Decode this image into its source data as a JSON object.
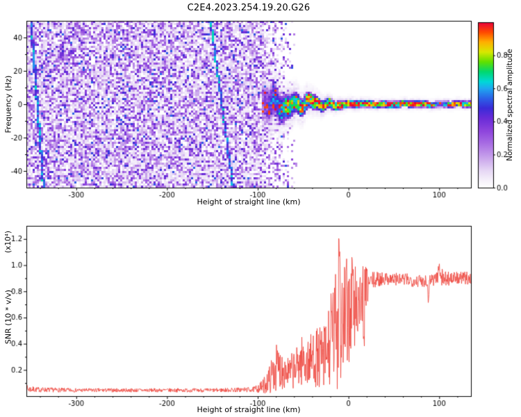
{
  "title": "C2E4.2023.254.19.20.G26",
  "chart_data": [
    {
      "type": "heatmap",
      "xlabel": "Height of straight line (km)",
      "ylabel": "Frequency (Hz)",
      "xlim": [
        -355,
        135
      ],
      "ylim": [
        -50,
        50
      ],
      "xticks": [
        -300,
        -200,
        -100,
        0,
        100
      ],
      "xtick_labels": [
        "-300",
        "-200",
        "-100",
        "0",
        "100"
      ],
      "yticks": [
        -40,
        -20,
        0,
        20,
        40
      ],
      "ytick_labels": [
        "-40",
        "-20",
        "0",
        "20",
        "40"
      ],
      "colorbar": {
        "label": "Normalized spectral amplitude",
        "lim": [
          0,
          1
        ],
        "ticks": [
          0,
          0.2,
          0.4,
          0.6,
          0.8
        ],
        "tick_labels": [
          "0.0",
          "0.2",
          "0.4",
          "0.6",
          "0.8"
        ]
      },
      "colormap": [
        [
          0.0,
          "#ffffff"
        ],
        [
          0.04,
          "#f7f3fb"
        ],
        [
          0.1,
          "#e7d9f5"
        ],
        [
          0.18,
          "#c9a4ec"
        ],
        [
          0.26,
          "#ab71e4"
        ],
        [
          0.34,
          "#8f46dd"
        ],
        [
          0.42,
          "#6a2bd8"
        ],
        [
          0.48,
          "#3b2bd8"
        ],
        [
          0.54,
          "#2b62e8"
        ],
        [
          0.6,
          "#1fa8f0"
        ],
        [
          0.64,
          "#00d8d8"
        ],
        [
          0.7,
          "#00d870"
        ],
        [
          0.76,
          "#60e000"
        ],
        [
          0.82,
          "#d8e800"
        ],
        [
          0.88,
          "#ffb000"
        ],
        [
          0.94,
          "#ff4800"
        ],
        [
          1.0,
          "#e8003c"
        ]
      ],
      "features": {
        "noise_region_km": [
          -355,
          -55
        ],
        "noise_fade_km": [
          -100,
          -55
        ],
        "signal_onset_km": -95,
        "signal_center_freq_hz": 0,
        "signal_core_amplitude": [
          [
            -95,
            0.3
          ],
          [
            -85,
            0.5
          ],
          [
            -70,
            0.72
          ],
          [
            -55,
            0.82
          ],
          [
            -35,
            0.92
          ],
          [
            -10,
            0.95
          ],
          [
            30,
            0.92
          ],
          [
            90,
            0.9
          ],
          [
            97,
            0.5
          ],
          [
            103,
            0.45
          ],
          [
            110,
            0.85
          ],
          [
            135,
            0.92
          ]
        ],
        "signal_halfwidth_hz": [
          [
            -95,
            13
          ],
          [
            -80,
            10
          ],
          [
            -60,
            7
          ],
          [
            -40,
            5
          ],
          [
            -25,
            3.5
          ],
          [
            -5,
            2.6
          ],
          [
            20,
            2.2
          ],
          [
            135,
            2
          ]
        ],
        "diagonal_streaks": [
          {
            "km_at_top": -152,
            "km_at_bottom": -127
          },
          {
            "km_at_top": -350,
            "km_at_bottom": -336
          }
        ]
      }
    },
    {
      "type": "line",
      "xlabel": "Height of straight line (km)",
      "ylabel": "SNR (10 * v/v)",
      "y_scale_label": "(x10⁴)",
      "line_color": "#ee3e35",
      "xlim": [
        -355,
        135
      ],
      "ylim": [
        0,
        1.3
      ],
      "xticks": [
        -300,
        -200,
        -100,
        0,
        100
      ],
      "xtick_labels": [
        "-300",
        "-200",
        "-100",
        "0",
        "100"
      ],
      "yticks": [
        0.2,
        0.4,
        0.6,
        0.8,
        1.0,
        1.2
      ],
      "ytick_labels": [
        "0.2",
        "0.4",
        "0.6",
        "0.8",
        "1.0",
        "1.2"
      ],
      "profile_mean_noise": [
        [
          -355,
          0.055,
          0.03
        ],
        [
          -345,
          0.05,
          0.02
        ],
        [
          -300,
          0.045,
          0.015
        ],
        [
          -200,
          0.045,
          0.015
        ],
        [
          -150,
          0.045,
          0.015
        ],
        [
          -105,
          0.05,
          0.02
        ],
        [
          -95,
          0.07,
          0.05
        ],
        [
          -88,
          0.12,
          0.1
        ],
        [
          -80,
          0.22,
          0.18
        ],
        [
          -72,
          0.2,
          0.15
        ],
        [
          -65,
          0.18,
          0.12
        ],
        [
          -58,
          0.22,
          0.16
        ],
        [
          -50,
          0.28,
          0.2
        ],
        [
          -45,
          0.25,
          0.18
        ],
        [
          -38,
          0.3,
          0.22
        ],
        [
          -30,
          0.28,
          0.25
        ],
        [
          -25,
          0.3,
          0.28
        ],
        [
          -18,
          0.45,
          0.4
        ],
        [
          -12,
          0.55,
          0.5
        ],
        [
          -8,
          0.5,
          0.45
        ],
        [
          -3,
          0.6,
          0.45
        ],
        [
          2,
          0.65,
          0.4
        ],
        [
          7,
          0.7,
          0.35
        ],
        [
          12,
          0.72,
          0.3
        ],
        [
          18,
          0.8,
          0.2
        ],
        [
          25,
          0.88,
          0.07
        ],
        [
          40,
          0.9,
          0.05
        ],
        [
          60,
          0.89,
          0.05
        ],
        [
          80,
          0.88,
          0.05
        ],
        [
          95,
          0.9,
          0.06
        ],
        [
          100,
          0.93,
          0.08
        ],
        [
          105,
          0.9,
          0.06
        ],
        [
          120,
          0.9,
          0.05
        ],
        [
          135,
          0.9,
          0.05
        ]
      ],
      "spikes": [
        [
          -10.5,
          1.28
        ],
        [
          -9.7,
          1.12
        ],
        [
          4,
          1.06
        ],
        [
          100,
          1.03
        ],
        [
          102,
          1.0
        ]
      ],
      "dips": [
        [
          17,
          0.38
        ],
        [
          88,
          0.7
        ]
      ]
    }
  ]
}
